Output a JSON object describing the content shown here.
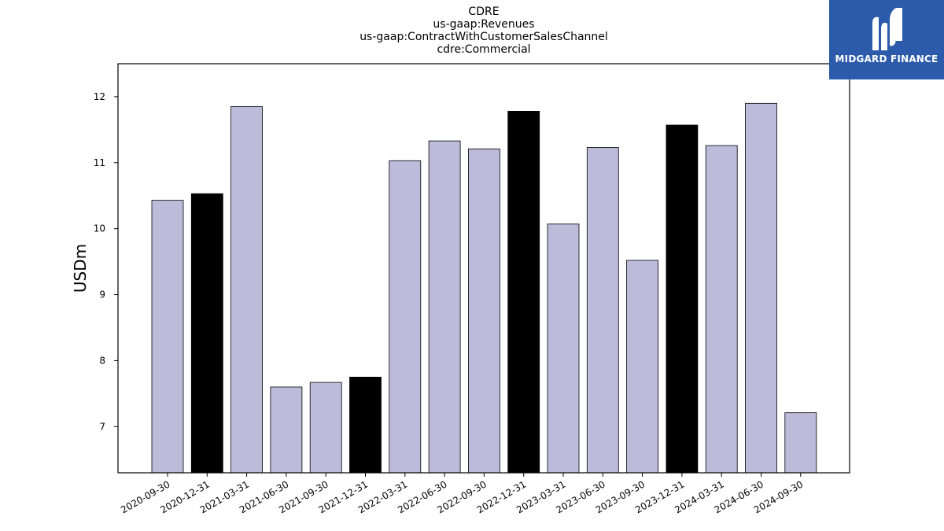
{
  "title_lines": [
    "CDRE",
    "us-gaap:Revenues",
    "us-gaap:ContractWithCustomerSalesChannel",
    "cdre:Commercial"
  ],
  "logo": {
    "text": "MIDGARD FINANCE",
    "icon": "midgard-logo-mark"
  },
  "chart_data": {
    "type": "bar",
    "ylabel": "USDm",
    "xlabel": "",
    "ylim": [
      6.3,
      12.5
    ],
    "yticks": [
      7,
      8,
      9,
      10,
      11,
      12
    ],
    "categories": [
      "2020-09-30",
      "2020-12-31",
      "2021-03-31",
      "2021-06-30",
      "2021-09-30",
      "2021-12-31",
      "2022-03-31",
      "2022-06-30",
      "2022-09-30",
      "2022-12-31",
      "2023-03-31",
      "2023-06-30",
      "2023-09-30",
      "2023-12-31",
      "2024-03-31",
      "2024-06-30",
      "2024-09-30"
    ],
    "values": [
      10.43,
      10.53,
      11.85,
      7.6,
      7.67,
      7.75,
      11.03,
      11.33,
      11.21,
      11.78,
      10.07,
      11.23,
      9.52,
      11.57,
      11.26,
      11.9,
      7.21
    ],
    "highlight": [
      false,
      true,
      false,
      false,
      false,
      true,
      false,
      false,
      false,
      true,
      false,
      false,
      false,
      true,
      false,
      false,
      false
    ],
    "colors": {
      "bar": "#bebada",
      "highlight": "#000000",
      "edge": "#000000"
    },
    "grid": false,
    "legend": "none"
  }
}
